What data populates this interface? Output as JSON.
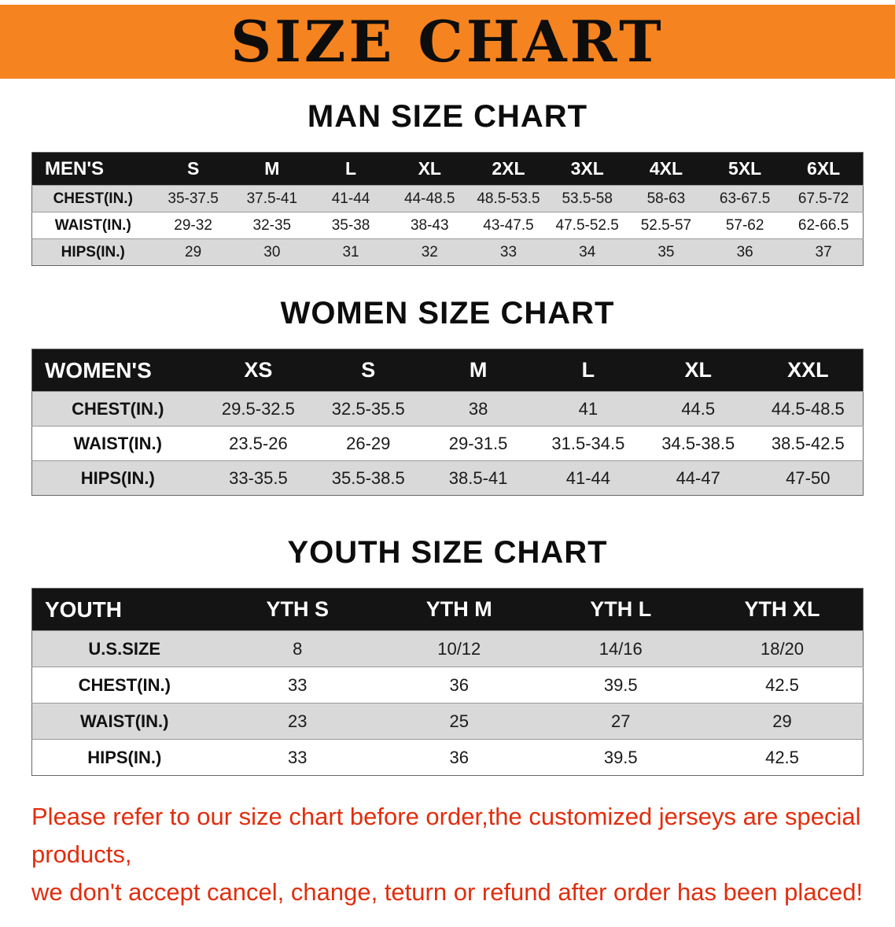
{
  "banner": {
    "title": "SIZE CHART",
    "bg_color": "#f5831f"
  },
  "sections": [
    {
      "heading": "MAN SIZE CHART",
      "table": {
        "header": [
          "MEN'S",
          "S",
          "M",
          "L",
          "XL",
          "2XL",
          "3XL",
          "4XL",
          "5XL",
          "6XL"
        ],
        "rows": [
          {
            "label": "CHEST(IN.)",
            "values": [
              "35-37.5",
              "37.5-41",
              "41-44",
              "44-48.5",
              "48.5-53.5",
              "53.5-58",
              "58-63",
              "63-67.5",
              "67.5-72"
            ]
          },
          {
            "label": "WAIST(IN.)",
            "values": [
              "29-32",
              "32-35",
              "35-38",
              "38-43",
              "43-47.5",
              "47.5-52.5",
              "52.5-57",
              "57-62",
              "62-66.5"
            ]
          },
          {
            "label": "HIPS(IN.)",
            "values": [
              "29",
              "30",
              "31",
              "32",
              "33",
              "34",
              "35",
              "36",
              "37"
            ]
          }
        ]
      }
    },
    {
      "heading": "WOMEN SIZE CHART",
      "table": {
        "header": [
          "WOMEN'S",
          "XS",
          "S",
          "M",
          "L",
          "XL",
          "XXL"
        ],
        "rows": [
          {
            "label": "CHEST(IN.)",
            "values": [
              "29.5-32.5",
              "32.5-35.5",
              "38",
              "41",
              "44.5",
              "44.5-48.5"
            ]
          },
          {
            "label": "WAIST(IN.)",
            "values": [
              "23.5-26",
              "26-29",
              "29-31.5",
              "31.5-34.5",
              "34.5-38.5",
              "38.5-42.5"
            ]
          },
          {
            "label": "HIPS(IN.)",
            "values": [
              "33-35.5",
              "35.5-38.5",
              "38.5-41",
              "41-44",
              "44-47",
              "47-50"
            ]
          }
        ]
      }
    },
    {
      "heading": "YOUTH SIZE CHART",
      "table": {
        "header": [
          "YOUTH",
          "YTH S",
          "YTH M",
          "YTH L",
          "YTH XL"
        ],
        "rows": [
          {
            "label": "U.S.SIZE",
            "values": [
              "8",
              "10/12",
              "14/16",
              "18/20"
            ]
          },
          {
            "label": "CHEST(IN.)",
            "values": [
              "33",
              "36",
              "39.5",
              "42.5"
            ]
          },
          {
            "label": "WAIST(IN.)",
            "values": [
              "23",
              "25",
              "27",
              "29"
            ]
          },
          {
            "label": "HIPS(IN.)",
            "values": [
              "33",
              "36",
              "39.5",
              "42.5"
            ]
          }
        ]
      }
    }
  ],
  "disclaimer": {
    "line1": "Please refer to our size chart before order,the customized jerseys are special products,",
    "line2": "we don't accept cancel, change, teturn or refund after order has been placed!",
    "color": "#e12d0d"
  }
}
